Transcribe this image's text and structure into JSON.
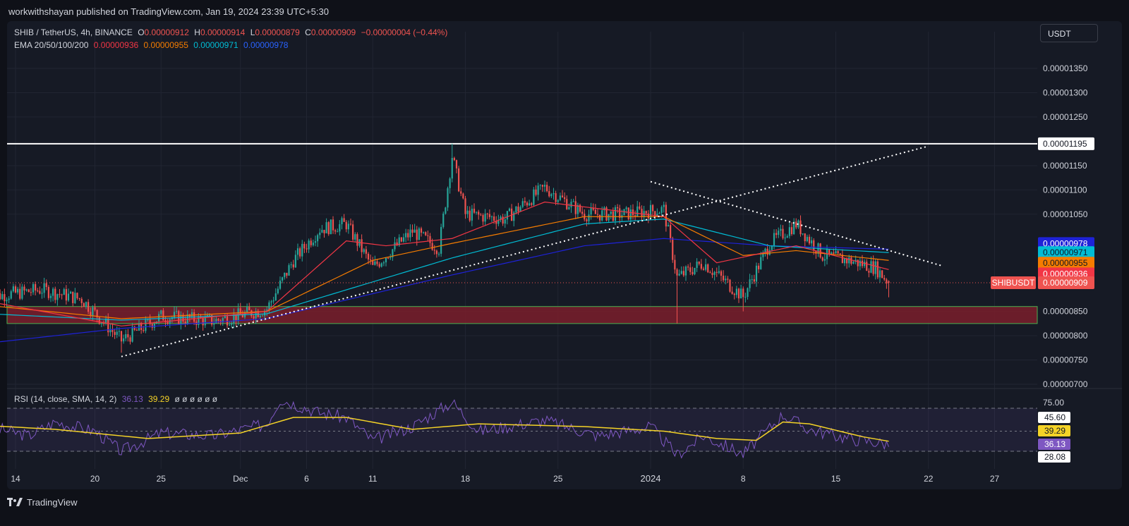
{
  "header": {
    "publisher_line": "workwithshayan published on TradingView.com, Jan 19, 2024 23:39 UTC+5:30"
  },
  "legend": {
    "symbol": "SHIB / TetherUS, 4h, BINANCE",
    "open_label": "O",
    "open": "0.00000912",
    "high_label": "H",
    "high": "0.00000914",
    "low_label": "L",
    "low": "0.00000879",
    "close_label": "C",
    "close": "0.00000909",
    "change": "−0.00000004 (−0.44%)",
    "ema_title": "EMA 20/50/100/200",
    "ema20": "0.00000936",
    "ema50": "0.00000955",
    "ema100": "0.00000971",
    "ema200": "0.00000978",
    "rsi_title": "RSI (14, close, SMA, 14, 2)",
    "rsi_value": "36.13",
    "rsi_sma": "39.29",
    "rsi_extras": "ø ø ø ø ø ø"
  },
  "toolbar": {
    "unit_label": "USDT"
  },
  "colors": {
    "up": "#26a69a",
    "down": "#ef5350",
    "bg": "#161a25",
    "ema20": "#f23645",
    "ema50": "#f57c00",
    "ema100": "#00bcd4",
    "ema200": "#1e22d8",
    "rsi": "#7e57c2",
    "rsi_sma": "#f5d327",
    "zone_fill": "#7a1f2b",
    "zone_border": "#4caf50"
  },
  "chart_data": {
    "type": "candlestick",
    "y_axis": {
      "ticks": [
        "0.00001350",
        "0.00001300",
        "0.00001250",
        "0.00001150",
        "0.00001100",
        "0.00001050",
        "0.00000850",
        "0.00000800",
        "0.00000750",
        "0.00000700"
      ],
      "range": [
        6.9e-06,
        1.4e-05
      ]
    },
    "x_axis": {
      "ticks": [
        "14",
        "20",
        "25",
        "Dec",
        "6",
        "11",
        "18",
        "25",
        "2024",
        "8",
        "15",
        "22",
        "27"
      ]
    },
    "price_labels": {
      "resistance": "0.00001195",
      "ema200": "0.00000978",
      "ema100": "0.00000971",
      "ema50": "0.00000955",
      "ema20": "0.00000936",
      "symbol_tag": "SHIBUSDT",
      "last": "0.00000909"
    },
    "annotations": {
      "resistance_level": 1.195e-05,
      "support_zone": [
        8.25e-06,
        8.6e-06
      ],
      "rising_trendline": [
        [
          "Nov 22",
          7.57e-06
        ],
        [
          "Jan 22",
          1.19e-05
        ]
      ],
      "falling_trendline": [
        [
          "Jan 1",
          1.117e-05
        ],
        [
          "Jan 23",
          9.44e-06
        ]
      ]
    },
    "price_path": [
      [
        "Nov 12",
        8.8e-06
      ],
      [
        "Nov 16",
        8.95e-06
      ],
      [
        "Nov 19",
        8.75e-06
      ],
      [
        "Nov 22",
        7.9e-06
      ],
      [
        "Nov 25",
        8.4e-06
      ],
      [
        "Nov 29",
        8.3e-06
      ],
      [
        "Dec 3",
        8.55e-06
      ],
      [
        "Dec 5",
        9.55e-06
      ],
      [
        "Dec 7",
        1.02e-05
      ],
      [
        "Dec 9",
        1.03e-05
      ],
      [
        "Dec 11",
        9.4e-06
      ],
      [
        "Dec 14",
        1.015e-05
      ],
      [
        "Dec 16",
        9.8e-06
      ],
      [
        "Dec 17",
        1.17e-05
      ],
      [
        "Dec 18",
        1.05e-05
      ],
      [
        "Dec 21",
        1.04e-05
      ],
      [
        "Dec 24",
        1.105e-05
      ],
      [
        "Dec 27",
        1.05e-05
      ],
      [
        "Dec 30",
        1.05e-05
      ],
      [
        "Jan 2",
        1.06e-05
      ],
      [
        "Jan 3",
        9.2e-06
      ],
      [
        "Jan 5",
        9.5e-06
      ],
      [
        "Jan 8",
        8.8e-06
      ],
      [
        "Jan 10",
        9.9e-06
      ],
      [
        "Jan 12",
        1.03e-05
      ],
      [
        "Jan 14",
        9.65e-06
      ],
      [
        "Jan 16",
        9.55e-06
      ],
      [
        "Jan 18",
        9.4e-06
      ],
      [
        "Jan 19",
        9.09e-06
      ]
    ],
    "ema200_path": [
      [
        "Nov 12",
        7.85e-06
      ],
      [
        "Nov 22",
        8.15e-06
      ],
      [
        "Dec 3",
        8.35e-06
      ],
      [
        "Dec 17",
        9.25e-06
      ],
      [
        "Dec 27",
        9.85e-06
      ],
      [
        "Jan 2",
        1e-05
      ],
      [
        "Jan 10",
        9.85e-06
      ],
      [
        "Jan 19",
        9.78e-06
      ]
    ],
    "ema100_path": [
      [
        "Nov 12",
        8.45e-06
      ],
      [
        "Nov 22",
        8.32e-06
      ],
      [
        "Dec 3",
        8.45e-06
      ],
      [
        "Dec 17",
        9.6e-06
      ],
      [
        "Dec 27",
        1.03e-05
      ],
      [
        "Jan 2",
        1.04e-05
      ],
      [
        "Jan 10",
        9.85e-06
      ],
      [
        "Jan 19",
        9.71e-06
      ]
    ],
    "ema50_path": [
      [
        "Nov 12",
        8.62e-06
      ],
      [
        "Nov 22",
        8.35e-06
      ],
      [
        "Dec 3",
        8.5e-06
      ],
      [
        "Dec 11",
        9.55e-06
      ],
      [
        "Dec 17",
        9.9e-06
      ],
      [
        "Dec 27",
        1.045e-05
      ],
      [
        "Jan 2",
        1.045e-05
      ],
      [
        "Jan 8",
        9.65e-06
      ],
      [
        "Jan 12",
        9.75e-06
      ],
      [
        "Jan 19",
        9.55e-06
      ]
    ],
    "ema20_path": [
      [
        "Nov 12",
        8.7e-06
      ],
      [
        "Nov 22",
        8.2e-06
      ],
      [
        "Dec 3",
        8.5e-06
      ],
      [
        "Dec 9",
        9.95e-06
      ],
      [
        "Dec 12",
        9.85e-06
      ],
      [
        "Dec 17",
        1e-05
      ],
      [
        "Dec 24",
        1.075e-05
      ],
      [
        "Jan 2",
        1.045e-05
      ],
      [
        "Jan 6",
        9.5e-06
      ],
      [
        "Jan 12",
        9.85e-06
      ],
      [
        "Jan 19",
        9.36e-06
      ]
    ],
    "rsi": {
      "levels": [
        "75.00",
        "28.08"
      ],
      "labels": [
        "45.60",
        "39.29",
        "36.13"
      ],
      "range": [
        20,
        90
      ],
      "rsi_path": [
        [
          "Nov 12",
          55
        ],
        [
          "Nov 15",
          45
        ],
        [
          "Nov 17",
          60
        ],
        [
          "Nov 20",
          50
        ],
        [
          "Nov 22",
          28
        ],
        [
          "Nov 25",
          48
        ],
        [
          "Nov 29",
          45
        ],
        [
          "Dec 3",
          58
        ],
        [
          "Dec 4",
          85
        ],
        [
          "Dec 7",
          70
        ],
        [
          "Dec 9",
          65
        ],
        [
          "Dec 11",
          40
        ],
        [
          "Dec 14",
          55
        ],
        [
          "Dec 17",
          82
        ],
        [
          "Dec 19",
          50
        ],
        [
          "Dec 24",
          62
        ],
        [
          "Dec 28",
          45
        ],
        [
          "Jan 1",
          55
        ],
        [
          "Jan 3",
          24
        ],
        [
          "Jan 5",
          45
        ],
        [
          "Jan 8",
          25
        ],
        [
          "Jan 11",
          68
        ],
        [
          "Jan 13",
          52
        ],
        [
          "Jan 16",
          42
        ],
        [
          "Jan 19",
          36
        ]
      ],
      "sma_path": [
        [
          "Nov 12",
          56
        ],
        [
          "Nov 17",
          52
        ],
        [
          "Nov 24",
          42
        ],
        [
          "Dec 1",
          48
        ],
        [
          "Dec 5",
          65
        ],
        [
          "Dec 9",
          65
        ],
        [
          "Dec 14",
          52
        ],
        [
          "Dec 19",
          58
        ],
        [
          "Dec 27",
          55
        ],
        [
          "Jan 2",
          50
        ],
        [
          "Jan 6",
          42
        ],
        [
          "Jan 9",
          40
        ],
        [
          "Jan 11",
          60
        ],
        [
          "Jan 13",
          58
        ],
        [
          "Jan 17",
          44
        ],
        [
          "Jan 19",
          39
        ]
      ]
    }
  },
  "footer": {
    "brand": "TradingView"
  }
}
